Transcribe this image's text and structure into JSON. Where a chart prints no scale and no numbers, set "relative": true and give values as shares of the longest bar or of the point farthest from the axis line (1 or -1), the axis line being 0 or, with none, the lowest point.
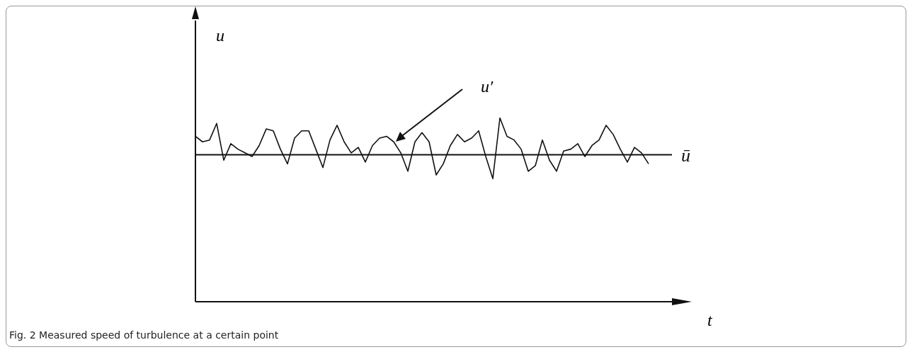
{
  "chart_data": {
    "type": "line",
    "relative": true,
    "xlabel": "t",
    "ylabel": "u",
    "categories": [
      null,
      null,
      null,
      null,
      null,
      null,
      null,
      null,
      null,
      null,
      null,
      null,
      null,
      null,
      null,
      null,
      null,
      null,
      null,
      null,
      null,
      null,
      null,
      null,
      null,
      null,
      null,
      null,
      null,
      null,
      null,
      null,
      null,
      null,
      null,
      null,
      null,
      null,
      null,
      null,
      null,
      null,
      null,
      null,
      null,
      null,
      null,
      null,
      null,
      null,
      null,
      null,
      null,
      null,
      null,
      null,
      null,
      null,
      null,
      null,
      null,
      null,
      null,
      null,
      null
    ],
    "series": [
      {
        "color": "#111111",
        "values": [
          0.9,
          0.87,
          0.88,
          0.97,
          0.77,
          0.86,
          0.83,
          0.81,
          0.79,
          0.85,
          0.94,
          0.93,
          0.83,
          0.75,
          0.89,
          0.93,
          0.93,
          0.83,
          0.73,
          0.88,
          0.96,
          0.87,
          0.81,
          0.84,
          0.76,
          0.85,
          0.89,
          0.9,
          0.87,
          0.81,
          0.71,
          0.87,
          0.92,
          0.87,
          0.69,
          0.75,
          0.85,
          0.91,
          0.87,
          0.89,
          0.93,
          0.79,
          0.67,
          1.0,
          0.9,
          0.88,
          0.83,
          0.71,
          0.74,
          0.88,
          0.77,
          0.71,
          0.82,
          0.83,
          0.86,
          0.79,
          0.85,
          0.88,
          0.96,
          0.91,
          0.83,
          0.76,
          0.84,
          0.81,
          0.75
        ]
      }
    ],
    "ref_lines": [
      {
        "axis": "y",
        "value": 0.8,
        "label": "ū",
        "color": "#111111"
      }
    ],
    "annotations": [
      "u′",
      "Fig. 2 Measured speed of turbulence at a certain point"
    ],
    "marker": "none",
    "grid": false,
    "legend": false
  }
}
